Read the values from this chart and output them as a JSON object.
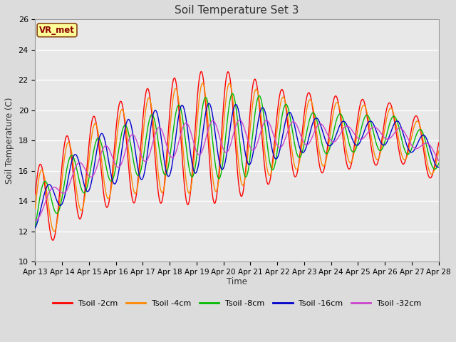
{
  "title": "Soil Temperature Set 3",
  "xlabel": "Time",
  "ylabel": "Soil Temperature (C)",
  "ylim": [
    10,
    26
  ],
  "xlim": [
    0,
    15
  ],
  "fig_bg_color": "#dcdcdc",
  "plot_bg_color": "#e8e8e8",
  "grid_color": "#ffffff",
  "label_box_text": "VR_met",
  "label_box_facecolor": "#ffff99",
  "label_box_edgecolor": "#8B4513",
  "xtick_labels": [
    "Apr 13",
    "Apr 14",
    "Apr 15",
    "Apr 16",
    "Apr 17",
    "Apr 18",
    "Apr 19",
    "Apr 20",
    "Apr 21",
    "Apr 22",
    "Apr 23",
    "Apr 24",
    "Apr 25",
    "Apr 26",
    "Apr 27",
    "Apr 28"
  ],
  "series": [
    {
      "name": "Tsoil -2cm",
      "color": "#ff0000"
    },
    {
      "name": "Tsoil -4cm",
      "color": "#ff8800"
    },
    {
      "name": "Tsoil -8cm",
      "color": "#00bb00"
    },
    {
      "name": "Tsoil -16cm",
      "color": "#0000cc"
    },
    {
      "name": "Tsoil -32cm",
      "color": "#cc44cc"
    }
  ]
}
